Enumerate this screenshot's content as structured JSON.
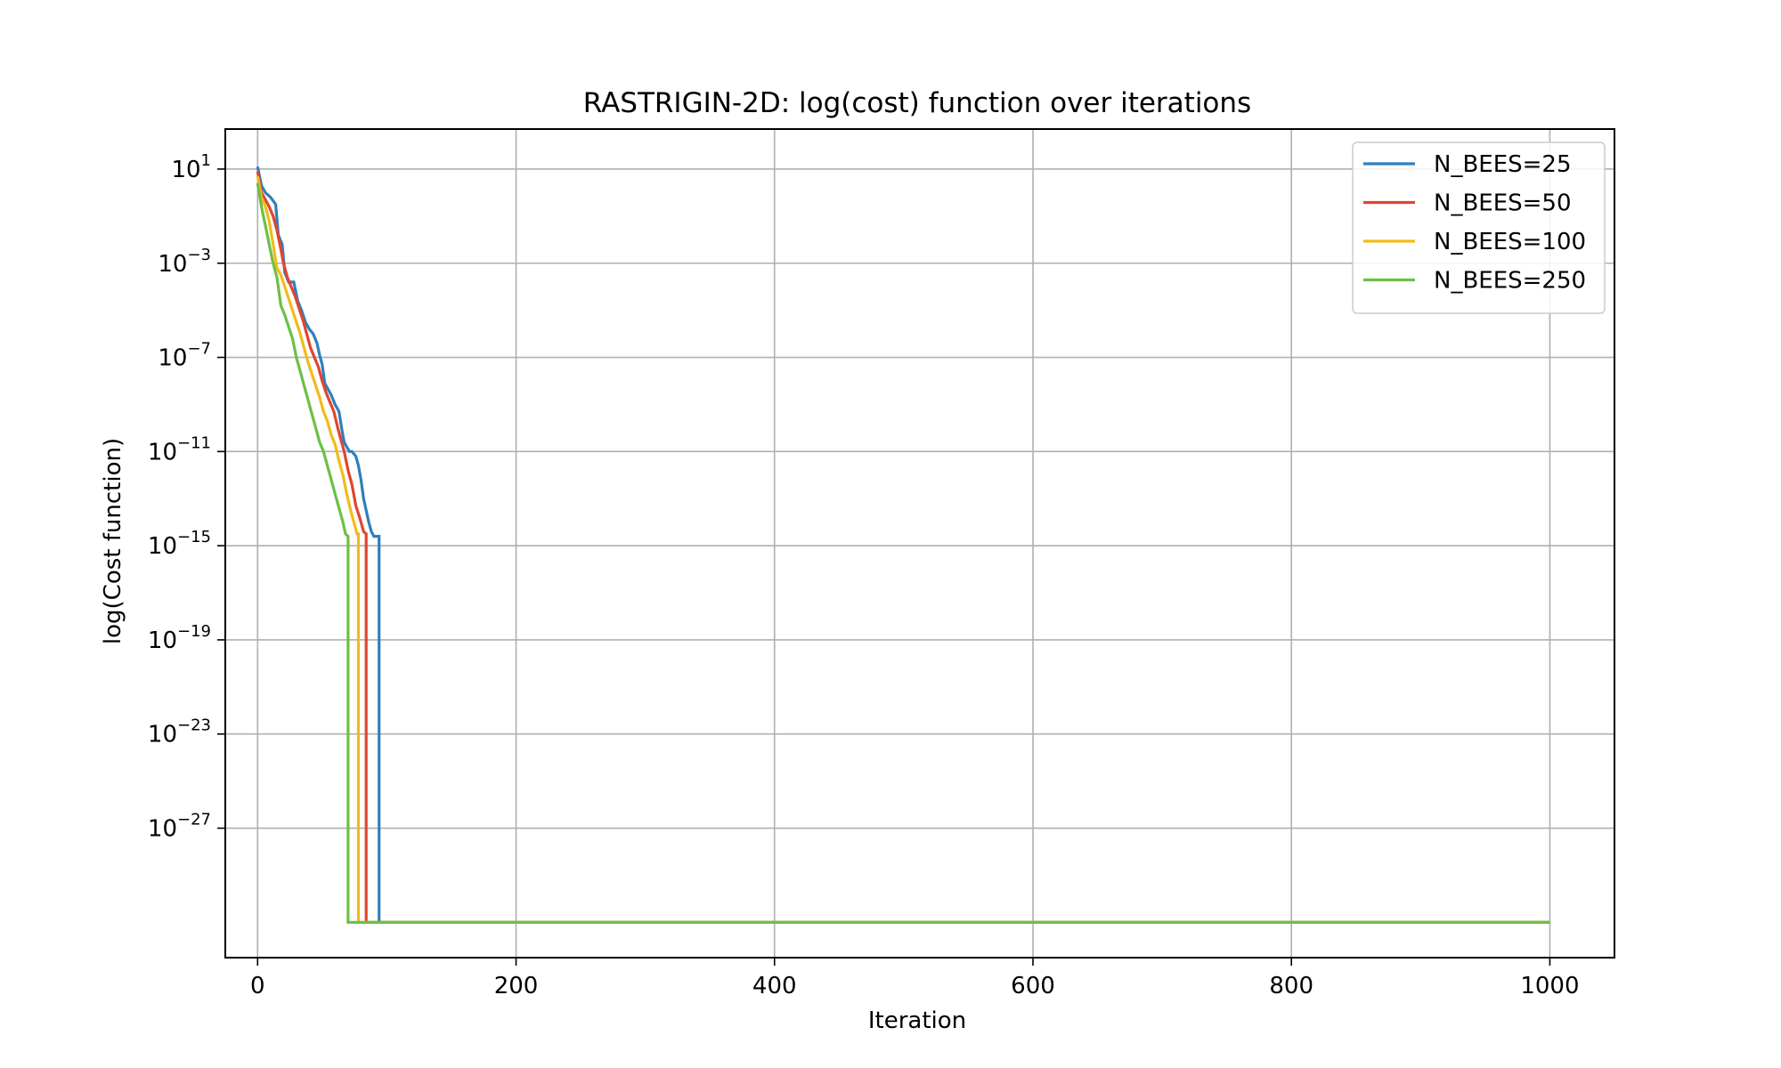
{
  "chart_data": {
    "type": "line",
    "title": "RASTRIGIN-2D: log(cost) function over iterations",
    "xlabel": "Iteration",
    "ylabel": "log(Cost function)",
    "yscale": "log",
    "xlim": [
      -25,
      1050
    ],
    "ylim_exp": [
      -32.5,
      2.7
    ],
    "xticks": [
      0,
      200,
      400,
      600,
      800,
      1000
    ],
    "xtick_labels": [
      "0",
      "200",
      "400",
      "600",
      "800",
      "1000"
    ],
    "yticks_exp": [
      1,
      -3,
      -7,
      -11,
      -15,
      -19,
      -23,
      -27
    ],
    "ytick_labels": [
      {
        "base": "10",
        "exp": "1"
      },
      {
        "base": "10",
        "exp": "−3"
      },
      {
        "base": "10",
        "exp": "−7"
      },
      {
        "base": "10",
        "exp": "−11"
      },
      {
        "base": "10",
        "exp": "−15"
      },
      {
        "base": "10",
        "exp": "−19"
      },
      {
        "base": "10",
        "exp": "−23"
      },
      {
        "base": "10",
        "exp": "−27"
      }
    ],
    "grid": true,
    "legend_position": "top-right",
    "series": [
      {
        "name": "N_BEES=25",
        "color": "#2f7fbd",
        "points_log10": [
          [
            0,
            1.1
          ],
          [
            3,
            0.3
          ],
          [
            6,
            0.0
          ],
          [
            10,
            -0.2
          ],
          [
            14,
            -0.5
          ],
          [
            16,
            -1.8
          ],
          [
            19,
            -2.2
          ],
          [
            21,
            -3.4
          ],
          [
            24,
            -3.8
          ],
          [
            28,
            -3.8
          ],
          [
            31,
            -4.6
          ],
          [
            34,
            -5.0
          ],
          [
            37,
            -5.5
          ],
          [
            40,
            -5.8
          ],
          [
            43,
            -6.0
          ],
          [
            46,
            -6.4
          ],
          [
            48,
            -6.9
          ],
          [
            50,
            -7.3
          ],
          [
            52,
            -8.1
          ],
          [
            54,
            -8.3
          ],
          [
            57,
            -8.6
          ],
          [
            60,
            -9.0
          ],
          [
            63,
            -9.3
          ],
          [
            65,
            -10.0
          ],
          [
            67,
            -10.6
          ],
          [
            69,
            -10.8
          ],
          [
            71,
            -11.0
          ],
          [
            73,
            -11.0
          ],
          [
            76,
            -11.2
          ],
          [
            78,
            -11.6
          ],
          [
            80,
            -12.2
          ],
          [
            82,
            -13.0
          ],
          [
            84,
            -13.5
          ],
          [
            86,
            -14.0
          ],
          [
            88,
            -14.4
          ],
          [
            90,
            -14.6
          ],
          [
            94,
            -14.6
          ],
          [
            94,
            -31.0
          ],
          [
            1000,
            -31.0
          ]
        ]
      },
      {
        "name": "N_BEES=50",
        "color": "#e0452f",
        "points_log10": [
          [
            0,
            0.9
          ],
          [
            3,
            0.0
          ],
          [
            6,
            -0.3
          ],
          [
            9,
            -0.6
          ],
          [
            12,
            -1.0
          ],
          [
            15,
            -1.6
          ],
          [
            18,
            -2.4
          ],
          [
            20,
            -3.0
          ],
          [
            23,
            -3.6
          ],
          [
            26,
            -4.0
          ],
          [
            29,
            -4.4
          ],
          [
            32,
            -4.9
          ],
          [
            35,
            -5.4
          ],
          [
            38,
            -6.0
          ],
          [
            41,
            -6.6
          ],
          [
            44,
            -7.0
          ],
          [
            47,
            -7.4
          ],
          [
            50,
            -8.0
          ],
          [
            53,
            -8.5
          ],
          [
            56,
            -8.9
          ],
          [
            59,
            -9.3
          ],
          [
            62,
            -10.0
          ],
          [
            65,
            -10.6
          ],
          [
            67,
            -11.0
          ],
          [
            70,
            -11.8
          ],
          [
            73,
            -12.4
          ],
          [
            76,
            -13.3
          ],
          [
            79,
            -13.8
          ],
          [
            82,
            -14.4
          ],
          [
            84,
            -14.5
          ],
          [
            84,
            -31.0
          ],
          [
            1000,
            -31.0
          ]
        ]
      },
      {
        "name": "N_BEES=100",
        "color": "#f2bb1a",
        "points_log10": [
          [
            0,
            0.7
          ],
          [
            3,
            -0.2
          ],
          [
            6,
            -0.6
          ],
          [
            9,
            -1.2
          ],
          [
            12,
            -2.2
          ],
          [
            15,
            -3.2
          ],
          [
            18,
            -3.5
          ],
          [
            21,
            -4.0
          ],
          [
            24,
            -4.5
          ],
          [
            27,
            -5.0
          ],
          [
            30,
            -5.5
          ],
          [
            33,
            -6.0
          ],
          [
            36,
            -6.6
          ],
          [
            39,
            -7.2
          ],
          [
            42,
            -7.7
          ],
          [
            45,
            -8.2
          ],
          [
            48,
            -8.7
          ],
          [
            51,
            -9.3
          ],
          [
            54,
            -9.7
          ],
          [
            57,
            -10.3
          ],
          [
            60,
            -10.7
          ],
          [
            63,
            -11.4
          ],
          [
            66,
            -12.0
          ],
          [
            69,
            -12.8
          ],
          [
            72,
            -13.5
          ],
          [
            75,
            -14.1
          ],
          [
            77,
            -14.5
          ],
          [
            78,
            -14.5
          ],
          [
            78,
            -31.0
          ],
          [
            1000,
            -31.0
          ]
        ]
      },
      {
        "name": "N_BEES=250",
        "color": "#6cc045",
        "points_log10": [
          [
            0,
            0.4
          ],
          [
            3,
            -0.6
          ],
          [
            6,
            -1.4
          ],
          [
            9,
            -2.2
          ],
          [
            12,
            -3.0
          ],
          [
            15,
            -3.6
          ],
          [
            18,
            -4.8
          ],
          [
            21,
            -5.2
          ],
          [
            24,
            -5.7
          ],
          [
            27,
            -6.2
          ],
          [
            30,
            -7.0
          ],
          [
            33,
            -7.6
          ],
          [
            36,
            -8.2
          ],
          [
            39,
            -8.8
          ],
          [
            42,
            -9.4
          ],
          [
            45,
            -10.0
          ],
          [
            48,
            -10.6
          ],
          [
            51,
            -11.0
          ],
          [
            54,
            -11.6
          ],
          [
            57,
            -12.2
          ],
          [
            60,
            -12.8
          ],
          [
            63,
            -13.4
          ],
          [
            66,
            -14.0
          ],
          [
            68,
            -14.5
          ],
          [
            70,
            -14.6
          ],
          [
            70,
            -31.0
          ],
          [
            1000,
            -31.0
          ]
        ]
      }
    ]
  }
}
